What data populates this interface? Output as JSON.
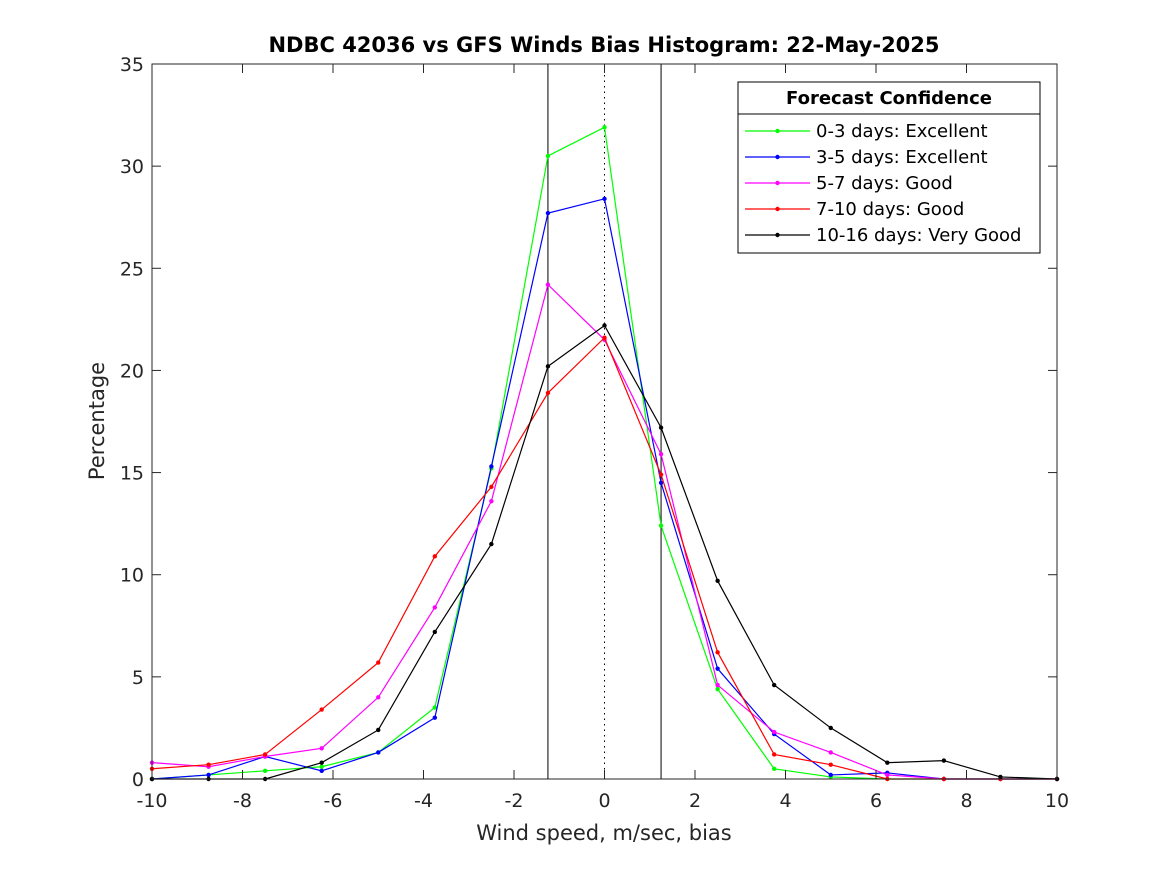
{
  "chart_data": {
    "type": "line",
    "title": "NDBC 42036 vs GFS Winds Bias Histogram: 22-May-2025",
    "xlabel": "Wind speed, m/sec, bias",
    "ylabel": "Percentage",
    "xlim": [
      -10,
      10
    ],
    "ylim": [
      0,
      35
    ],
    "xticks": [
      "-10",
      "-8",
      "-6",
      "-4",
      "-2",
      "0",
      "2",
      "4",
      "6",
      "8",
      "10"
    ],
    "yticks": [
      "0",
      "5",
      "10",
      "15",
      "20",
      "25",
      "30",
      "35"
    ],
    "reference_lines": [
      {
        "x": -1.25,
        "style": "solid"
      },
      {
        "x": 0,
        "style": "dotted"
      },
      {
        "x": 1.25,
        "style": "solid"
      }
    ],
    "legend": {
      "title": "Forecast Confidence",
      "placement": "top-right"
    },
    "x": [
      -10,
      -8.75,
      -7.5,
      -6.25,
      -5,
      -3.75,
      -2.5,
      -1.25,
      0,
      1.25,
      2.5,
      3.75,
      5,
      6.25,
      7.5,
      8.75,
      10
    ],
    "series": [
      {
        "name": "0-3 days: Excellent",
        "color": "#00ff00",
        "values": [
          0,
          0.2,
          0.4,
          0.6,
          1.3,
          3.5,
          15.2,
          30.5,
          31.9,
          12.4,
          4.4,
          0.5,
          0.1,
          0,
          0,
          0,
          0
        ]
      },
      {
        "name": "3-5 days: Excellent",
        "color": "#0000ff",
        "values": [
          0,
          0.2,
          1.1,
          0.4,
          1.3,
          3.0,
          15.3,
          27.7,
          28.4,
          14.5,
          5.4,
          2.2,
          0.2,
          0.3,
          0,
          0,
          0
        ]
      },
      {
        "name": "5-7 days: Good",
        "color": "#ff00ff",
        "values": [
          0.8,
          0.6,
          1.1,
          1.5,
          4.0,
          8.4,
          13.6,
          24.2,
          21.5,
          15.9,
          4.6,
          2.3,
          1.3,
          0.2,
          0,
          0,
          0
        ]
      },
      {
        "name": "7-10 days: Good",
        "color": "#ff0000",
        "values": [
          0.5,
          0.7,
          1.2,
          3.4,
          5.7,
          10.9,
          14.3,
          18.9,
          21.6,
          14.9,
          6.2,
          1.2,
          0.7,
          0,
          0,
          0,
          0
        ]
      },
      {
        "name": "10-16 days: Very Good",
        "color": "#000000",
        "values": [
          0,
          0,
          0,
          0.8,
          2.4,
          7.2,
          11.5,
          20.2,
          22.2,
          17.2,
          9.7,
          4.6,
          2.5,
          0.8,
          0.9,
          0.1,
          0
        ]
      }
    ]
  }
}
